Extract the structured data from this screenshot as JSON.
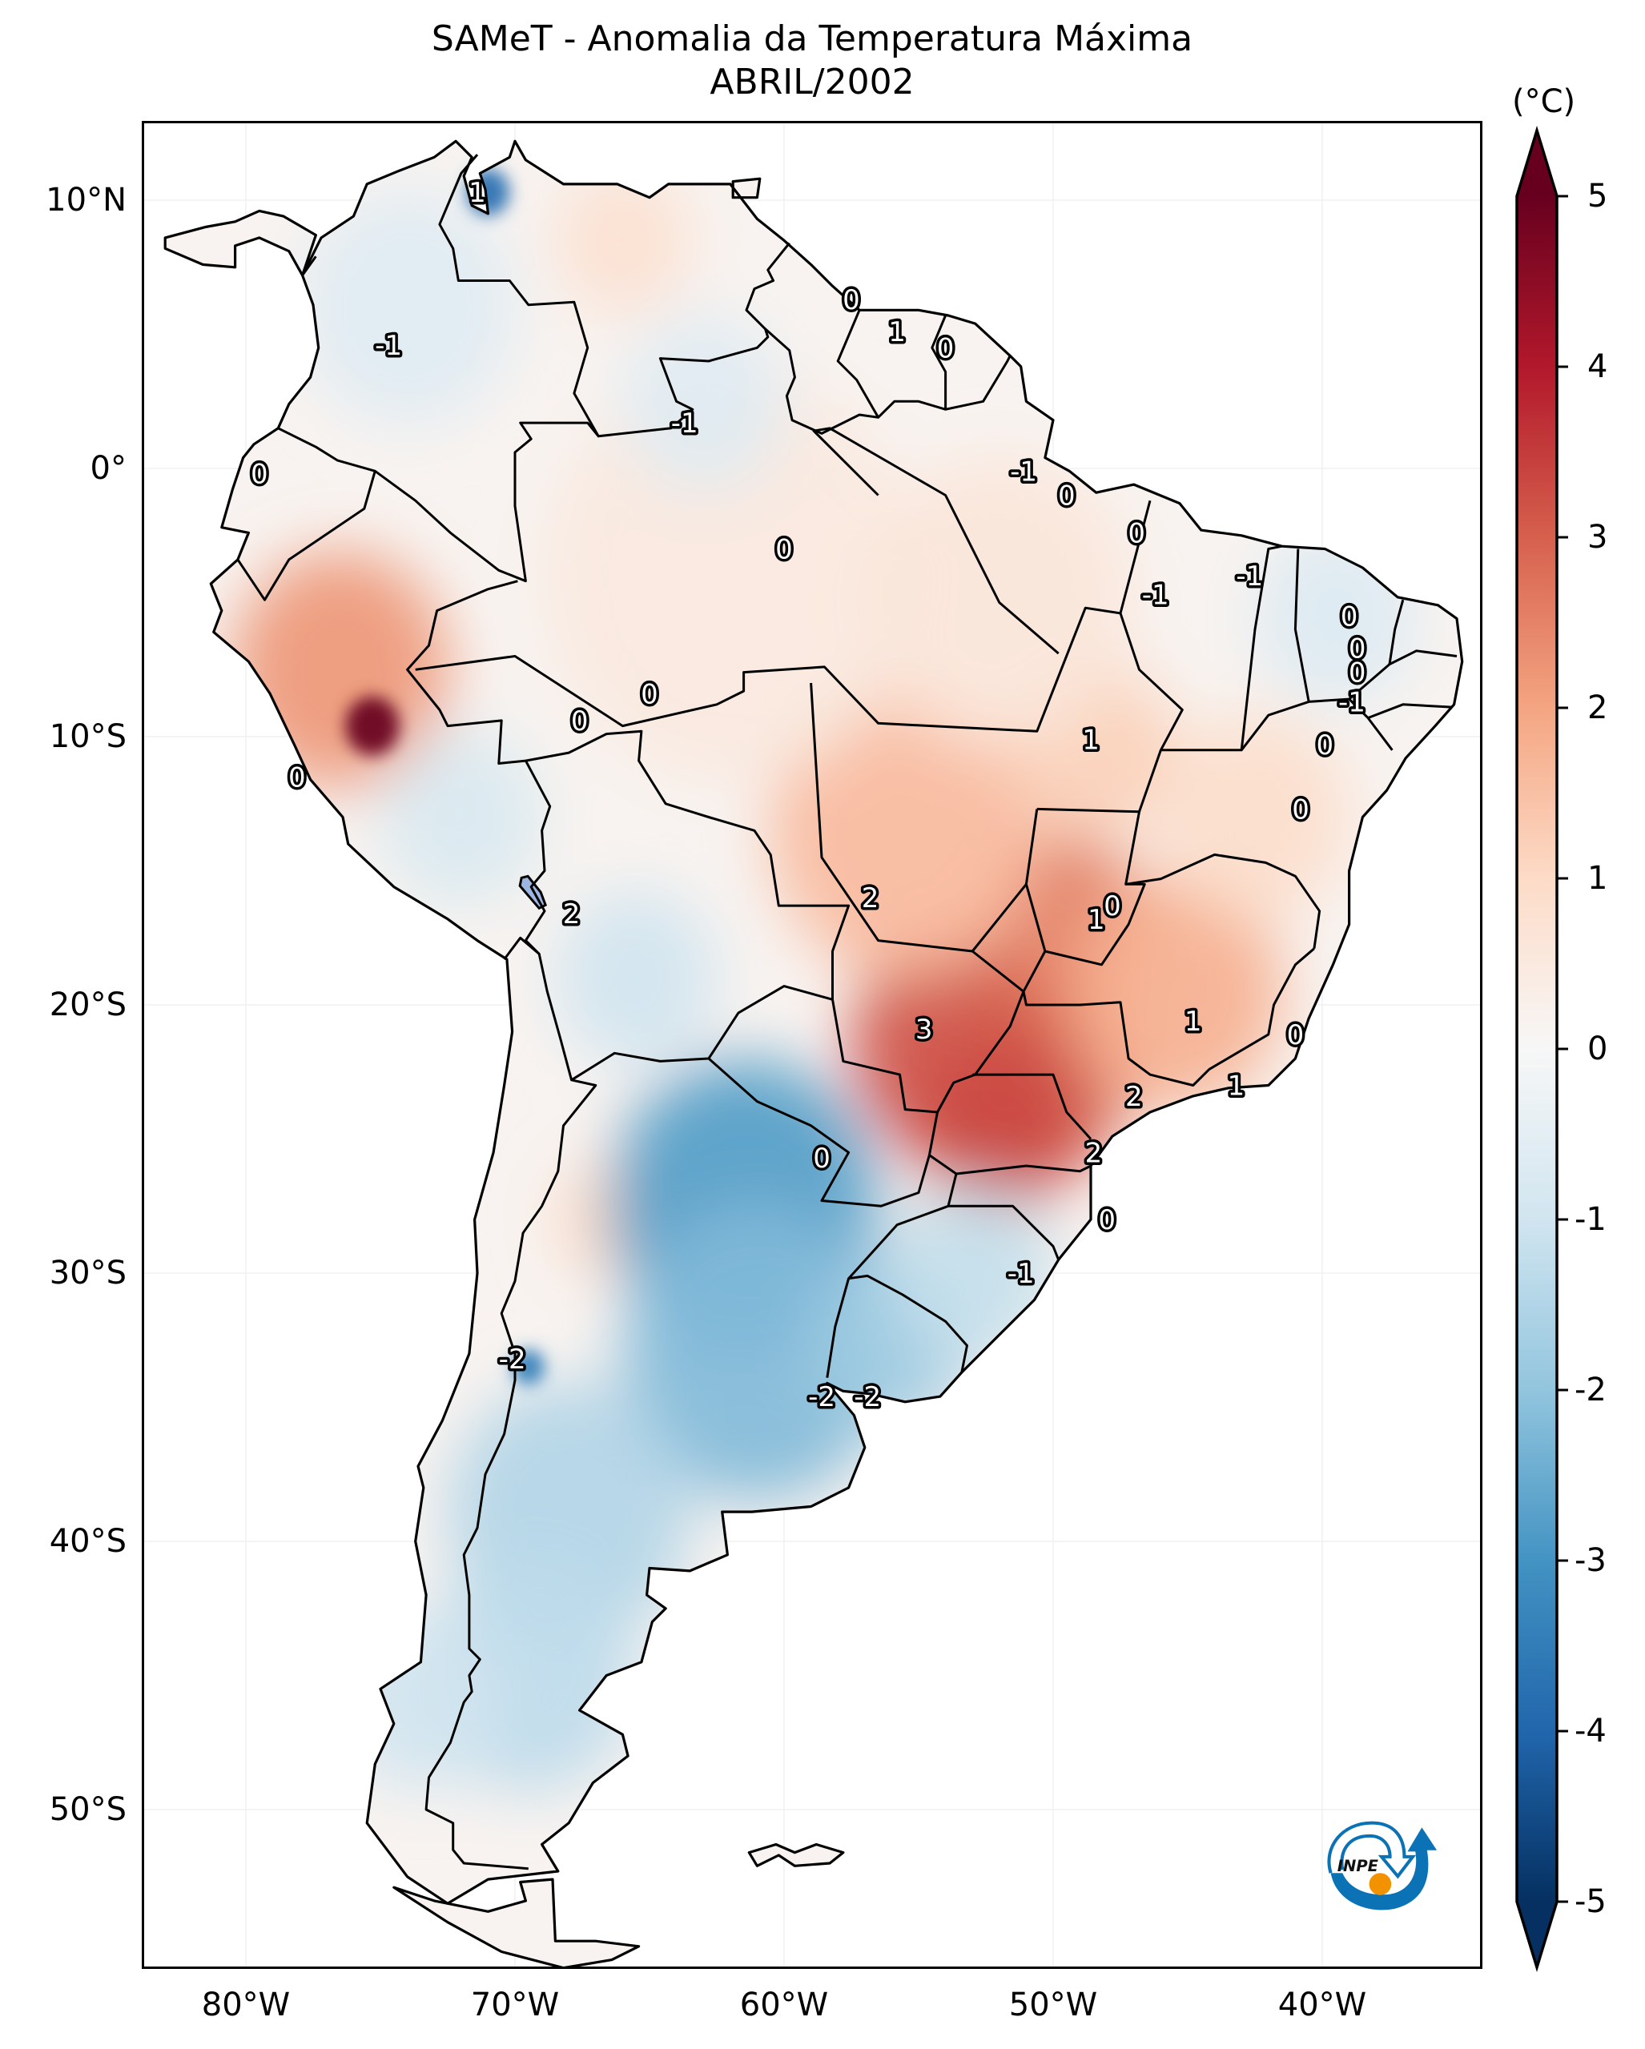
{
  "title": {
    "line1": "SAMeT - Anomalia da Temperatura Máxima",
    "line2": "ABRIL/2002"
  },
  "chart_data": {
    "type": "heatmap",
    "subtype": "geographic-filled-contour",
    "title": "SAMeT - Anomalia da Temperatura Máxima",
    "subtitle": "ABRIL/2002",
    "variable": "Anomalia da Temperatura Máxima",
    "units": "(°C)",
    "extent": {
      "lon": [
        -83,
        -33.2
      ],
      "lat": [
        12.9,
        -56
      ]
    },
    "grid": true,
    "x_ticks": [
      {
        "value": -80,
        "label": "80°W"
      },
      {
        "value": -70,
        "label": "70°W"
      },
      {
        "value": -60,
        "label": "60°W"
      },
      {
        "value": -50,
        "label": "50°W"
      },
      {
        "value": -40,
        "label": "40°W"
      }
    ],
    "y_ticks": [
      {
        "value": 10,
        "label": "10°N"
      },
      {
        "value": 0,
        "label": "0°"
      },
      {
        "value": -10,
        "label": "10°S"
      },
      {
        "value": -20,
        "label": "20°S"
      },
      {
        "value": -30,
        "label": "30°S"
      },
      {
        "value": -40,
        "label": "40°S"
      },
      {
        "value": -50,
        "label": "50°S"
      }
    ],
    "colorbar": {
      "label": "(°C)",
      "position": "right",
      "range": [
        -5,
        5
      ],
      "extend": "both",
      "cmap": "RdBu_r",
      "ticks": [
        {
          "value": 5,
          "label": "5"
        },
        {
          "value": 4,
          "label": "4"
        },
        {
          "value": 3,
          "label": "3"
        },
        {
          "value": 2,
          "label": "2"
        },
        {
          "value": 1,
          "label": "1"
        },
        {
          "value": 0,
          "label": "0"
        },
        {
          "value": -1,
          "label": "-1"
        },
        {
          "value": -2,
          "label": "-2"
        },
        {
          "value": -3,
          "label": "-3"
        },
        {
          "value": -4,
          "label": "-4"
        },
        {
          "value": -5,
          "label": "-5"
        }
      ],
      "stops": [
        {
          "value": -5,
          "color": "#053061"
        },
        {
          "value": -4,
          "color": "#2166ac"
        },
        {
          "value": -3,
          "color": "#4393c3"
        },
        {
          "value": -2,
          "color": "#92c5de"
        },
        {
          "value": -1,
          "color": "#d1e5f0"
        },
        {
          "value": 0,
          "color": "#f7f7f7"
        },
        {
          "value": 1,
          "color": "#fddbc7"
        },
        {
          "value": 2,
          "color": "#f4a582"
        },
        {
          "value": 3,
          "color": "#d6604d"
        },
        {
          "value": 4,
          "color": "#b2182b"
        },
        {
          "value": 5,
          "color": "#67001f"
        }
      ]
    },
    "contour_labels": [
      {
        "text": "1",
        "lon": -71.4,
        "lat": 10.3
      },
      {
        "text": "-1",
        "lon": -74.7,
        "lat": 4.6
      },
      {
        "text": "-1",
        "lon": -63.7,
        "lat": 1.7
      },
      {
        "text": "0",
        "lon": -57.5,
        "lat": 6.3
      },
      {
        "text": "1",
        "lon": -55.8,
        "lat": 5.1
      },
      {
        "text": "0",
        "lon": -54.0,
        "lat": 4.5
      },
      {
        "text": "0",
        "lon": -79.5,
        "lat": -0.2
      },
      {
        "text": "-1",
        "lon": -51.1,
        "lat": -0.1
      },
      {
        "text": "0",
        "lon": -49.5,
        "lat": -1.0
      },
      {
        "text": "0",
        "lon": -60.0,
        "lat": -3.0
      },
      {
        "text": "0",
        "lon": -46.9,
        "lat": -2.4
      },
      {
        "text": "-1",
        "lon": -42.7,
        "lat": -4.0
      },
      {
        "text": "-1",
        "lon": -46.2,
        "lat": -4.7
      },
      {
        "text": "0",
        "lon": -39.0,
        "lat": -5.5
      },
      {
        "text": "0",
        "lon": -38.7,
        "lat": -6.7
      },
      {
        "text": "0",
        "lon": -38.7,
        "lat": -7.6
      },
      {
        "text": "-1",
        "lon": -38.9,
        "lat": -8.7
      },
      {
        "text": "0",
        "lon": -65.0,
        "lat": -8.4
      },
      {
        "text": "0",
        "lon": -67.6,
        "lat": -9.4
      },
      {
        "text": "1",
        "lon": -48.6,
        "lat": -10.1
      },
      {
        "text": "0",
        "lon": -39.9,
        "lat": -10.3
      },
      {
        "text": "0",
        "lon": -78.1,
        "lat": -11.5
      },
      {
        "text": "0",
        "lon": -40.8,
        "lat": -12.7
      },
      {
        "text": "2",
        "lon": -56.8,
        "lat": -16.0
      },
      {
        "text": "0",
        "lon": -47.8,
        "lat": -16.3
      },
      {
        "text": "1",
        "lon": -48.4,
        "lat": -16.8
      },
      {
        "text": "2",
        "lon": -67.9,
        "lat": -16.6
      },
      {
        "text": "3",
        "lon": -54.8,
        "lat": -20.9
      },
      {
        "text": "1",
        "lon": -44.8,
        "lat": -20.6
      },
      {
        "text": "0",
        "lon": -41.0,
        "lat": -21.1
      },
      {
        "text": "1",
        "lon": -43.2,
        "lat": -23.0
      },
      {
        "text": "2",
        "lon": -47.0,
        "lat": -23.4
      },
      {
        "text": "2",
        "lon": -48.5,
        "lat": -25.5
      },
      {
        "text": "0",
        "lon": -58.6,
        "lat": -25.7
      },
      {
        "text": "0",
        "lon": -48.0,
        "lat": -28.0
      },
      {
        "text": "-1",
        "lon": -51.2,
        "lat": -30.0
      },
      {
        "text": "-2",
        "lon": -70.1,
        "lat": -33.2
      },
      {
        "text": "-2",
        "lon": -58.6,
        "lat": -34.6
      },
      {
        "text": "-2",
        "lon": -56.9,
        "lat": -34.6
      }
    ],
    "anomaly_regions": [
      {
        "name": "northern-peru-hotspot",
        "lon": -75.3,
        "lat": -9.6,
        "value": 5.0,
        "radius_deg": 1.0
      },
      {
        "name": "peru-coast-warm",
        "lon": -76.5,
        "lat": -7.5,
        "value": 2.2,
        "radius_deg": 4.0
      },
      {
        "name": "mato-grosso-do-sul-warm",
        "lon": -53.5,
        "lat": -21.5,
        "value": 3.2,
        "radius_deg": 4.0
      },
      {
        "name": "sao-paulo-warm",
        "lon": -50.5,
        "lat": -22.5,
        "value": 3.0,
        "radius_deg": 3.5
      },
      {
        "name": "parana-warm",
        "lon": -52.0,
        "lat": -24.5,
        "value": 3.3,
        "radius_deg": 3.0
      },
      {
        "name": "goias-warm",
        "lon": -49.5,
        "lat": -17.0,
        "value": 2.6,
        "radius_deg": 3.0
      },
      {
        "name": "minas-gerais-warm",
        "lon": -45.5,
        "lat": -19.5,
        "value": 1.8,
        "radius_deg": 4.0
      },
      {
        "name": "mato-grosso-warm",
        "lon": -55.5,
        "lat": -13.5,
        "value": 1.6,
        "radius_deg": 5.0
      },
      {
        "name": "tocantins-warm",
        "lon": -48.5,
        "lat": -10.5,
        "value": 1.2,
        "radius_deg": 3.0
      },
      {
        "name": "bahia-warm",
        "lon": -42.5,
        "lat": -13.0,
        "value": 0.9,
        "radius_deg": 3.5
      },
      {
        "name": "amazon-warm",
        "lon": -62.0,
        "lat": -4.0,
        "value": 0.5,
        "radius_deg": 7.0
      },
      {
        "name": "para-warm",
        "lon": -52.0,
        "lat": -5.0,
        "value": 0.6,
        "radius_deg": 5.0
      },
      {
        "name": "venezuela-warm",
        "lon": -66.0,
        "lat": 8.5,
        "value": 0.8,
        "radius_deg": 2.5
      },
      {
        "name": "northwest-argentina-warm",
        "lon": -66.5,
        "lat": -28.0,
        "value": 1.0,
        "radius_deg": 2.0
      },
      {
        "name": "maracaibo-cold",
        "lon": -71.0,
        "lat": 10.3,
        "value": -3.8,
        "radius_deg": 0.8
      },
      {
        "name": "colombia-cool",
        "lon": -74.0,
        "lat": 6.0,
        "value": -0.6,
        "radius_deg": 4.0
      },
      {
        "name": "guyana-cool",
        "lon": -63.0,
        "lat": 2.5,
        "value": -0.6,
        "radius_deg": 3.0
      },
      {
        "name": "ceara-cool",
        "lon": -39.5,
        "lat": -5.5,
        "value": -0.7,
        "radius_deg": 3.0
      },
      {
        "name": "bolivia-altiplano-cool",
        "lon": -65.5,
        "lat": -19.0,
        "value": -1.0,
        "radius_deg": 3.0
      },
      {
        "name": "southern-peru-cool",
        "lon": -72.0,
        "lat": -13.0,
        "value": -0.8,
        "radius_deg": 3.0
      },
      {
        "name": "chaco-cold",
        "lon": -61.5,
        "lat": -27.5,
        "value": -2.8,
        "radius_deg": 5.0
      },
      {
        "name": "pampas-cold",
        "lon": -61.0,
        "lat": -33.0,
        "value": -2.2,
        "radius_deg": 5.0
      },
      {
        "name": "uruguay-cold",
        "lon": -56.0,
        "lat": -32.5,
        "value": -1.8,
        "radius_deg": 3.0
      },
      {
        "name": "rio-grande-sul-cool",
        "lon": -53.0,
        "lat": -30.0,
        "value": -1.2,
        "radius_deg": 3.0
      },
      {
        "name": "andes-mendoza-cold",
        "lon": -69.5,
        "lat": -33.5,
        "value": -3.5,
        "radius_deg": 0.6
      },
      {
        "name": "northern-patagonia-cool",
        "lon": -68.0,
        "lat": -39.0,
        "value": -1.5,
        "radius_deg": 4.5
      },
      {
        "name": "patagonia-cool",
        "lon": -69.5,
        "lat": -45.0,
        "value": -1.3,
        "radius_deg": 4.0
      },
      {
        "name": "southern-chile-cool",
        "lon": -73.5,
        "lat": -46.0,
        "value": -1.0,
        "radius_deg": 3.0
      }
    ],
    "lakes": [
      {
        "name": "lake-titicaca",
        "color": "#9bb6e0",
        "lon": -69.4,
        "lat": -15.8
      }
    ]
  },
  "logo": {
    "text": "INPE",
    "name": "inpe-logo",
    "orange": "#f39200",
    "blue": "#0b72b5"
  }
}
